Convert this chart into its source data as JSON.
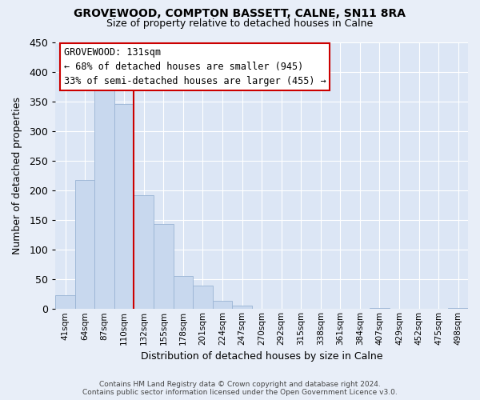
{
  "title1": "GROVEWOOD, COMPTON BASSETT, CALNE, SN11 8RA",
  "title2": "Size of property relative to detached houses in Calne",
  "xlabel": "Distribution of detached houses by size in Calne",
  "ylabel": "Number of detached properties",
  "bar_labels": [
    "41sqm",
    "64sqm",
    "87sqm",
    "110sqm",
    "132sqm",
    "155sqm",
    "178sqm",
    "201sqm",
    "224sqm",
    "247sqm",
    "270sqm",
    "292sqm",
    "315sqm",
    "338sqm",
    "361sqm",
    "384sqm",
    "407sqm",
    "429sqm",
    "452sqm",
    "475sqm",
    "498sqm"
  ],
  "bar_heights": [
    23,
    218,
    375,
    345,
    192,
    143,
    56,
    40,
    14,
    6,
    0,
    0,
    0,
    0,
    0,
    0,
    2,
    0,
    0,
    0,
    2
  ],
  "bar_color": "#c8d8ee",
  "bar_edge_color": "#9ab4d4",
  "vline_color": "#cc0000",
  "annotation_title": "GROVEWOOD: 131sqm",
  "annotation_line1": "← 68% of detached houses are smaller (945)",
  "annotation_line2": "33% of semi-detached houses are larger (455) →",
  "box_facecolor": "#ffffff",
  "box_edgecolor": "#cc0000",
  "ylim": [
    0,
    450
  ],
  "yticks": [
    0,
    50,
    100,
    150,
    200,
    250,
    300,
    350,
    400,
    450
  ],
  "footnote1": "Contains HM Land Registry data © Crown copyright and database right 2024.",
  "footnote2": "Contains public sector information licensed under the Open Government Licence v3.0.",
  "bg_color": "#e8eef8",
  "plot_bg_color": "#dce6f5",
  "grid_color": "#ffffff",
  "title1_fontsize": 10,
  "title2_fontsize": 9,
  "annotation_fontsize": 8.5,
  "xlabel_fontsize": 9,
  "ylabel_fontsize": 9,
  "xtick_fontsize": 7.5,
  "ytick_fontsize": 9,
  "footnote_fontsize": 6.5
}
